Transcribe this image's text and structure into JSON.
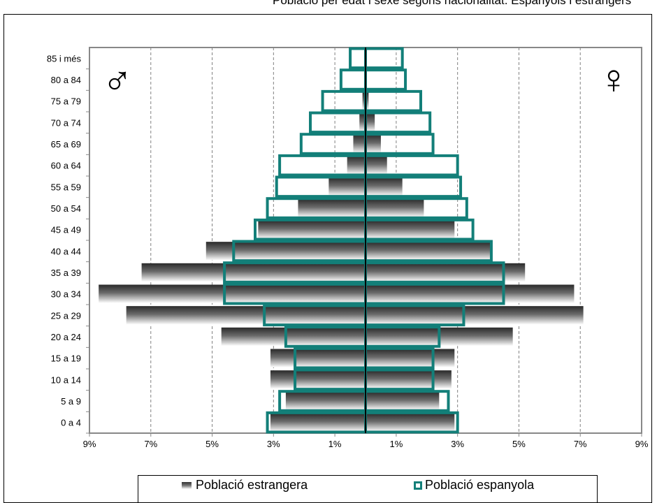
{
  "title": "Població per edat i sexe segons nacionalitat. Espanyols i estrangers",
  "chart_data": {
    "type": "bar",
    "orientation": "horizontal-pyramid",
    "categories": [
      "0 a 4",
      "5 a 9",
      "10 a 14",
      "15 a 19",
      "20 a 24",
      "25 a 29",
      "30 a 34",
      "35 a 39",
      "40 a 44",
      "45 a 49",
      "50 a 54",
      "55 a 59",
      "60 a 64",
      "65 a 69",
      "70 a 74",
      "75 a 79",
      "80 a 84",
      "85 i més"
    ],
    "x_ticks": [
      "9%",
      "7%",
      "5%",
      "3%",
      "1%",
      "1%",
      "3%",
      "5%",
      "7%",
      "9%"
    ],
    "xlim": [
      -9,
      9
    ],
    "grid": "vertical dashed",
    "left_symbol": "♂",
    "right_symbol": "♀",
    "legend_position": "bottom",
    "series": [
      {
        "name": "Població estrangera",
        "style": "gradient-filled",
        "male": [
          3.1,
          2.6,
          3.1,
          3.1,
          4.7,
          7.8,
          8.7,
          7.3,
          5.2,
          3.5,
          2.2,
          1.2,
          0.6,
          0.4,
          0.2,
          0.1,
          0.0,
          0.0
        ],
        "female": [
          2.9,
          2.4,
          2.8,
          2.9,
          4.8,
          7.1,
          6.8,
          5.2,
          4.1,
          2.9,
          1.9,
          1.2,
          0.7,
          0.5,
          0.3,
          0.1,
          0.0,
          0.0
        ]
      },
      {
        "name": "Població espanyola",
        "style": "outline",
        "color": "#137f79",
        "male": [
          3.2,
          2.8,
          2.3,
          2.3,
          2.6,
          3.3,
          4.6,
          4.6,
          4.3,
          3.6,
          3.2,
          2.9,
          2.8,
          2.1,
          1.8,
          1.4,
          0.8,
          0.5
        ],
        "female": [
          3.0,
          2.7,
          2.2,
          2.2,
          2.4,
          3.2,
          4.5,
          4.5,
          4.1,
          3.5,
          3.3,
          3.1,
          3.0,
          2.2,
          2.1,
          1.8,
          1.3,
          1.2
        ]
      }
    ]
  }
}
